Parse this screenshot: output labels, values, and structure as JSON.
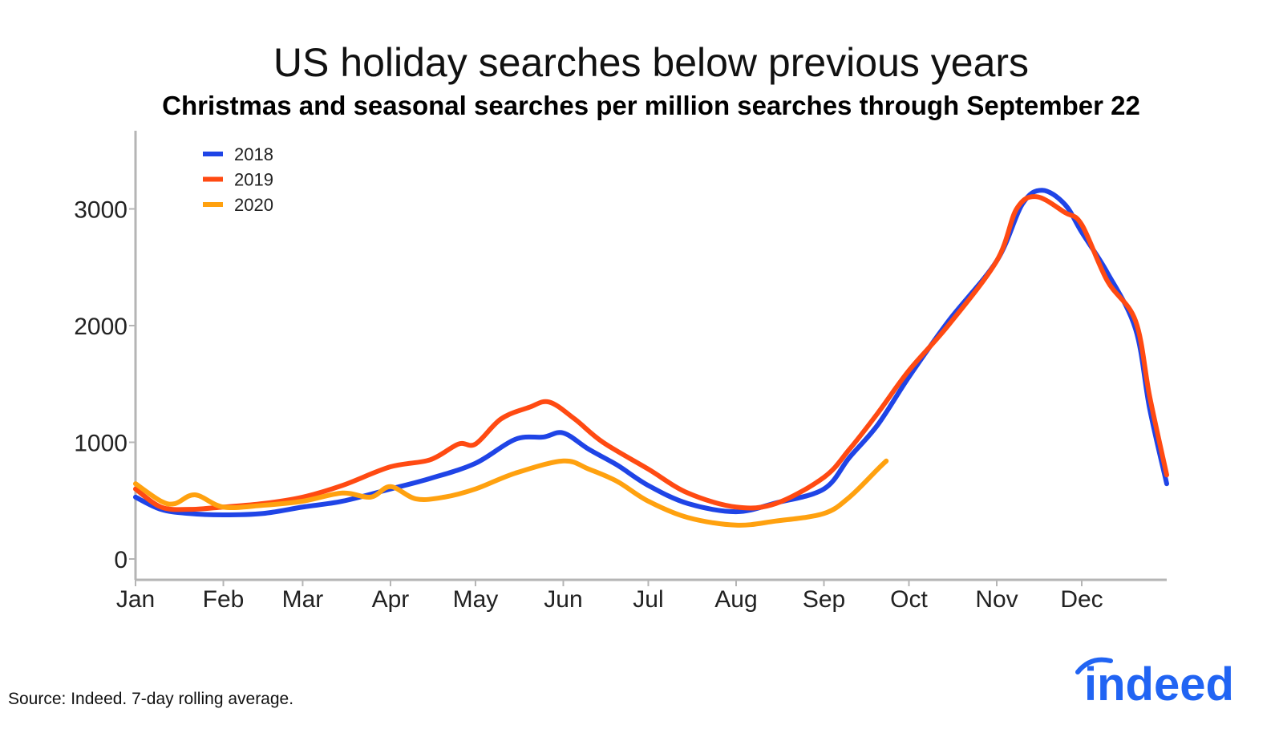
{
  "chart_data": {
    "type": "line",
    "title": "US holiday searches below previous years",
    "subtitle": "Christmas and seasonal searches per million searches through September 22",
    "xlabel": "",
    "ylabel": "",
    "ylim": [
      0,
      3600
    ],
    "yticks": [
      0,
      1000,
      2000,
      3000
    ],
    "ytick_labels": [
      "0",
      "1000",
      "2000",
      "3000"
    ],
    "xlim_day_of_year": [
      1,
      365
    ],
    "xticks": [
      {
        "label": "Jan",
        "day": 1
      },
      {
        "label": "Feb",
        "day": 32
      },
      {
        "label": "Mar",
        "day": 60
      },
      {
        "label": "Apr",
        "day": 91
      },
      {
        "label": "May",
        "day": 121
      },
      {
        "label": "Jun",
        "day": 152
      },
      {
        "label": "Jul",
        "day": 182
      },
      {
        "label": "Aug",
        "day": 213
      },
      {
        "label": "Sep",
        "day": 244
      },
      {
        "label": "Oct",
        "day": 274
      },
      {
        "label": "Nov",
        "day": 305
      },
      {
        "label": "Dec",
        "day": 335
      }
    ],
    "legend_position": "top-left",
    "series": [
      {
        "name": "2018",
        "color": "#1f44e6",
        "x": [
          1,
          10,
          20,
          32,
          46,
          60,
          74,
          91,
          105,
          121,
          135,
          145,
          152,
          161,
          171,
          182,
          196,
          213,
          227,
          244,
          253,
          263,
          274,
          288,
          305,
          314,
          321,
          329,
          335,
          344,
          354,
          359,
          365
        ],
        "y": [
          530,
          425,
          390,
          378,
          390,
          445,
          495,
          600,
          690,
          820,
          1025,
          1045,
          1080,
          940,
          805,
          630,
          475,
          405,
          480,
          600,
          870,
          1150,
          1560,
          2040,
          2555,
          3040,
          3160,
          3040,
          2800,
          2455,
          1970,
          1285,
          645
        ]
      },
      {
        "name": "2019",
        "color": "#ff4a12",
        "x": [
          1,
          10,
          20,
          32,
          46,
          60,
          74,
          91,
          105,
          115,
          121,
          130,
          140,
          147,
          156,
          166,
          182,
          196,
          213,
          227,
          244,
          253,
          263,
          274,
          288,
          305,
          312,
          319,
          329,
          335,
          344,
          354,
          359,
          365
        ],
        "y": [
          600,
          445,
          425,
          445,
          475,
          530,
          630,
          790,
          850,
          985,
          985,
          1200,
          1300,
          1345,
          1200,
          1000,
          770,
          565,
          445,
          475,
          700,
          940,
          1250,
          1615,
          2005,
          2555,
          3000,
          3105,
          2970,
          2865,
          2385,
          2040,
          1390,
          720
        ]
      },
      {
        "name": "2020",
        "color": "#ffa10f",
        "x": [
          1,
          10,
          15,
          22,
          32,
          46,
          60,
          74,
          84,
          91,
          100,
          110,
          121,
          135,
          152,
          161,
          171,
          182,
          196,
          213,
          227,
          244,
          253,
          263,
          266
        ],
        "y": [
          645,
          495,
          475,
          550,
          445,
          460,
          495,
          565,
          530,
          620,
          515,
          530,
          600,
          735,
          840,
          770,
          665,
          495,
          355,
          290,
          325,
          390,
          530,
          770,
          840
        ]
      }
    ]
  },
  "source": "Source: Indeed. 7-day rolling average.",
  "logo_text": "indeed"
}
